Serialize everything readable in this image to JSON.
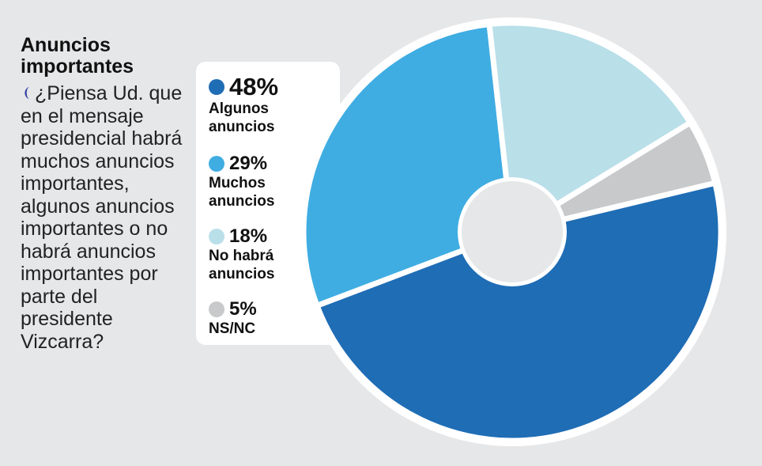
{
  "title": "Anuncios importantes",
  "question": "¿Piensa Ud. que en el mensaje presidencial habrá muchos anuncios importantes, algunos anuncios importantes o no habrá anuncios importantes por parte del presidente Vizcarra?",
  "chart_data": {
    "type": "pie",
    "style": "donut",
    "slices": [
      {
        "label": "Algunos anuncios",
        "value": 48,
        "pct_label": "48%",
        "color": "#1f6db5"
      },
      {
        "label": "Muchos anuncios",
        "value": 29,
        "pct_label": "29%",
        "color": "#3fade2"
      },
      {
        "label": "No habrá anuncios",
        "value": 18,
        "pct_label": "18%",
        "color": "#b9dfe9"
      },
      {
        "label": "NS/NC",
        "value": 5,
        "pct_label": "5%",
        "color": "#c8c9cb"
      }
    ],
    "legend_position": "left"
  }
}
